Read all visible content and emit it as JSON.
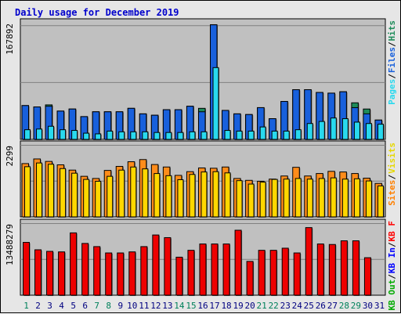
{
  "chart_data": [
    {
      "type": "bar",
      "title": "Daily usage for December 2019",
      "ylabel_max": "167892",
      "ymax": 167892,
      "categories": [
        "1",
        "2",
        "3",
        "4",
        "5",
        "6",
        "7",
        "8",
        "9",
        "10",
        "11",
        "12",
        "13",
        "14",
        "15",
        "16",
        "17",
        "18",
        "19",
        "20",
        "21",
        "22",
        "23",
        "24",
        "25",
        "26",
        "27",
        "28",
        "29",
        "30",
        "31"
      ],
      "weekend_days": [
        "1",
        "7",
        "8",
        "14",
        "15",
        "21",
        "22",
        "28",
        "29"
      ],
      "legend": [
        {
          "label": "Hits",
          "color": "#1e8c5a"
        },
        {
          "label": "Files",
          "color": "#1860dc"
        },
        {
          "label": "Pages",
          "color": "#29d9ee"
        }
      ],
      "series": [
        {
          "name": "Hits",
          "values": [
            49000,
            47000,
            50000,
            41000,
            44000,
            33000,
            40000,
            40000,
            40000,
            45000,
            37000,
            35000,
            43000,
            43000,
            48000,
            45000,
            166000,
            42000,
            37000,
            36000,
            46000,
            30000,
            55000,
            72000,
            72000,
            68000,
            67000,
            69000,
            53000,
            44000,
            28000
          ]
        },
        {
          "name": "Files",
          "values": [
            49000,
            47000,
            48000,
            41000,
            44000,
            33000,
            40000,
            40000,
            40000,
            45000,
            37000,
            35000,
            43000,
            43000,
            48000,
            40000,
            166000,
            42000,
            37000,
            36000,
            46000,
            30000,
            55000,
            72000,
            72000,
            68000,
            67000,
            69000,
            46000,
            37000,
            28000
          ]
        },
        {
          "name": "Pages",
          "values": [
            14000,
            15000,
            19000,
            14000,
            13000,
            9000,
            8000,
            12000,
            11000,
            11000,
            11000,
            10000,
            10000,
            10000,
            11000,
            11000,
            104000,
            13000,
            12000,
            12000,
            18000,
            12000,
            12000,
            14000,
            23000,
            26000,
            31000,
            30000,
            25000,
            23000,
            22000
          ]
        }
      ]
    },
    {
      "type": "bar",
      "ylabel_max": "2299",
      "ymax": 2299,
      "categories": [
        "1",
        "2",
        "3",
        "4",
        "5",
        "6",
        "7",
        "8",
        "9",
        "10",
        "11",
        "12",
        "13",
        "14",
        "15",
        "16",
        "17",
        "18",
        "19",
        "20",
        "21",
        "22",
        "23",
        "24",
        "25",
        "26",
        "27",
        "28",
        "29",
        "30",
        "31"
      ],
      "legend": [
        {
          "label": "Visits",
          "color": "#f0e000"
        },
        {
          "label": "Sites",
          "color": "#ff8000"
        }
      ],
      "series": [
        {
          "name": "Visits",
          "values": [
            1620,
            1740,
            1700,
            1560,
            1410,
            1210,
            1150,
            1310,
            1510,
            1610,
            1550,
            1400,
            1330,
            1200,
            1370,
            1450,
            1460,
            1420,
            1170,
            1060,
            1120,
            1210,
            1220,
            1240,
            1220,
            1240,
            1260,
            1220,
            1230,
            1160,
            1000
          ]
        },
        {
          "name": "Sites",
          "values": [
            1720,
            1870,
            1790,
            1680,
            1510,
            1310,
            1240,
            1500,
            1630,
            1780,
            1850,
            1690,
            1610,
            1340,
            1460,
            1580,
            1570,
            1610,
            1240,
            1180,
            1150,
            1220,
            1320,
            1600,
            1320,
            1400,
            1470,
            1450,
            1400,
            1250,
            1080
          ]
        }
      ]
    },
    {
      "type": "bar",
      "ylabel_max": "13488279",
      "ymax": 13488279,
      "categories": [
        "1",
        "2",
        "3",
        "4",
        "5",
        "6",
        "7",
        "8",
        "9",
        "10",
        "11",
        "12",
        "13",
        "14",
        "15",
        "16",
        "17",
        "18",
        "19",
        "20",
        "21",
        "22",
        "23",
        "24",
        "25",
        "26",
        "27",
        "28",
        "29",
        "30",
        "31"
      ],
      "legend": [
        {
          "label": "KB F",
          "color": "#ff0000"
        },
        {
          "label": " / ",
          "color": "#000000"
        },
        {
          "label": "KB In",
          "color": "#0000ff"
        },
        {
          "label": " / ",
          "color": "#000000"
        },
        {
          "label": "KB Out",
          "color": "#00aa00"
        }
      ],
      "series": [
        {
          "name": "KB F",
          "values": [
            10000000,
            8600000,
            8300000,
            8200000,
            11800000,
            9800000,
            9200000,
            8000000,
            8000000,
            8200000,
            9200000,
            11400000,
            10900000,
            7200000,
            8500000,
            9700000,
            9700000,
            9700000,
            12300000,
            6400000,
            8500000,
            8500000,
            8900000,
            8000000,
            12800000,
            9700000,
            9600000,
            10300000,
            10300000,
            7100000,
            0
          ]
        }
      ]
    }
  ]
}
